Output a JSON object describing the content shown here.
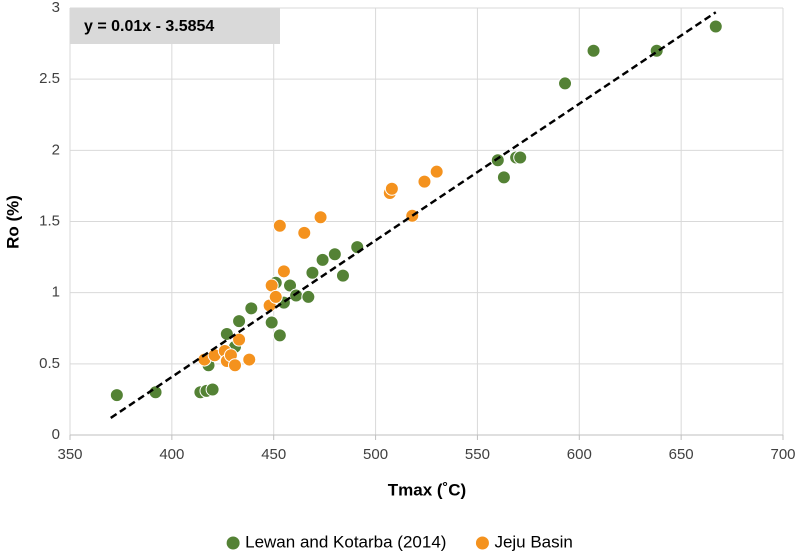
{
  "chart_data": {
    "type": "scatter",
    "x_label": "Tmax (˚C)",
    "y_label": "Ro (%)",
    "xlim": [
      350,
      700
    ],
    "xticks": [
      350,
      400,
      450,
      500,
      550,
      600,
      650,
      700
    ],
    "ylim": [
      0,
      3
    ],
    "yticks": [
      0,
      0.5,
      1,
      1.5,
      2,
      2.5,
      3
    ],
    "grid": true,
    "legend": "bottom",
    "series": [
      {
        "name": "Lewan and Kotarba (2014)",
        "color": "#548235",
        "x": [
          373,
          392,
          414,
          417,
          420,
          418,
          427,
          431,
          433,
          439,
          449,
          453,
          451,
          455,
          458,
          461,
          467,
          469,
          474,
          480,
          484,
          491,
          560,
          563,
          569,
          571,
          593,
          607,
          638,
          667
        ],
        "y": [
          0.28,
          0.3,
          0.3,
          0.31,
          0.32,
          0.49,
          0.71,
          0.62,
          0.8,
          0.89,
          0.79,
          0.7,
          1.07,
          0.93,
          1.05,
          0.98,
          0.97,
          1.14,
          1.23,
          1.27,
          1.12,
          1.32,
          1.93,
          1.81,
          1.95,
          1.95,
          2.47,
          2.7,
          2.7,
          2.87
        ]
      },
      {
        "name": "Jeju Basin",
        "color": "#f4921e",
        "x": [
          416,
          421,
          426,
          427,
          429,
          431,
          433,
          438,
          448,
          449,
          451,
          453,
          455,
          465,
          473,
          507,
          508,
          518,
          524,
          530
        ],
        "y": [
          0.53,
          0.56,
          0.59,
          0.52,
          0.56,
          0.49,
          0.67,
          0.53,
          0.91,
          1.05,
          0.97,
          1.47,
          1.15,
          1.42,
          1.53,
          1.7,
          1.73,
          1.54,
          1.78,
          1.85
        ]
      }
    ],
    "trendline": {
      "label": "y = 0.01x - 3.5854",
      "color": "#000000",
      "x": [
        370,
        667
      ],
      "y": [
        0.12,
        2.97
      ]
    }
  }
}
